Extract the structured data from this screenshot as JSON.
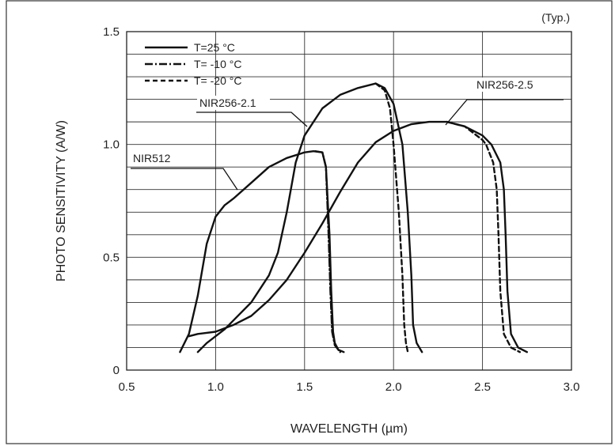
{
  "chart_data": {
    "type": "line",
    "title": "",
    "annotation": "(Typ.)",
    "xlabel": "WAVELENGTH (µm)",
    "ylabel": "PHOTO SENSITIVITY (A/W)",
    "xlim": [
      0.5,
      3.0
    ],
    "ylim": [
      0,
      1.5
    ],
    "xticks": [
      "0.5",
      "1.0",
      "1.5",
      "2.0",
      "2.5",
      "3.0"
    ],
    "yticks": [
      "0",
      "0.5",
      "1.0",
      "1.5"
    ],
    "x_grid": [
      1.0,
      1.5,
      2.0,
      2.5
    ],
    "y_grid": [
      0.1,
      0.2,
      0.3,
      0.4,
      0.5,
      0.6,
      0.7,
      0.8,
      0.9,
      1.0,
      1.1,
      1.2,
      1.3,
      1.4
    ],
    "grid": true,
    "legend": {
      "placement": "top-left",
      "entries": [
        {
          "label": "T=25 °C",
          "style": "solid"
        },
        {
          "label": "T= -10 °C",
          "style": "dashdot"
        },
        {
          "label": "T= -20 °C",
          "style": "dashed"
        }
      ]
    },
    "series": [
      {
        "name": "NIR512",
        "temperature": "T=25 °C",
        "style": "solid",
        "x": [
          0.8,
          0.85,
          0.9,
          0.95,
          1.0,
          1.05,
          1.1,
          1.2,
          1.3,
          1.4,
          1.5,
          1.55,
          1.6,
          1.62,
          1.64,
          1.65,
          1.66,
          1.67,
          1.69,
          1.72
        ],
        "y": [
          0.08,
          0.16,
          0.33,
          0.56,
          0.68,
          0.73,
          0.76,
          0.83,
          0.9,
          0.94,
          0.965,
          0.97,
          0.965,
          0.9,
          0.6,
          0.35,
          0.17,
          0.12,
          0.09,
          0.08
        ]
      },
      {
        "name": "NIR512",
        "temperature": "T= -10 °C",
        "style": "dashdot",
        "x": [
          1.56,
          1.6,
          1.62,
          1.635,
          1.645,
          1.655,
          1.67,
          1.7
        ],
        "y": [
          0.97,
          0.965,
          0.9,
          0.6,
          0.35,
          0.17,
          0.11,
          0.08
        ]
      },
      {
        "name": "NIR256-2.1",
        "temperature": "T=25 °C",
        "style": "solid",
        "x": [
          0.9,
          0.95,
          1.0,
          1.05,
          1.1,
          1.2,
          1.3,
          1.35,
          1.4,
          1.45,
          1.5,
          1.6,
          1.7,
          1.8,
          1.9,
          1.95,
          2.0,
          2.05,
          2.08,
          2.1,
          2.11,
          2.13,
          2.16
        ],
        "y": [
          0.08,
          0.12,
          0.15,
          0.18,
          0.22,
          0.3,
          0.42,
          0.52,
          0.7,
          0.92,
          1.04,
          1.16,
          1.22,
          1.25,
          1.27,
          1.25,
          1.18,
          1.0,
          0.7,
          0.42,
          0.2,
          0.12,
          0.08
        ]
      },
      {
        "name": "NIR256-2.1",
        "temperature": "T= -20 °C",
        "style": "dashed",
        "x": [
          1.9,
          1.95,
          1.98,
          2.0,
          2.03,
          2.05,
          2.06,
          2.07,
          2.08
        ],
        "y": [
          1.27,
          1.24,
          1.16,
          1.0,
          0.7,
          0.42,
          0.2,
          0.12,
          0.08
        ]
      },
      {
        "name": "NIR256-2.5",
        "temperature": "T=25 °C",
        "style": "solid",
        "x": [
          0.85,
          0.9,
          1.0,
          1.1,
          1.2,
          1.3,
          1.4,
          1.5,
          1.6,
          1.7,
          1.8,
          1.9,
          2.0,
          2.1,
          2.2,
          2.3,
          2.4,
          2.5,
          2.55,
          2.6,
          2.62,
          2.63,
          2.64,
          2.66,
          2.7,
          2.75
        ],
        "y": [
          0.15,
          0.16,
          0.17,
          0.2,
          0.24,
          0.31,
          0.4,
          0.52,
          0.65,
          0.79,
          0.92,
          1.01,
          1.06,
          1.09,
          1.1,
          1.1,
          1.08,
          1.04,
          1.0,
          0.92,
          0.8,
          0.6,
          0.35,
          0.16,
          0.1,
          0.08
        ]
      },
      {
        "name": "NIR256-2.5",
        "temperature": "T= -20 °C",
        "style": "dashed",
        "x": [
          2.3,
          2.4,
          2.5,
          2.52,
          2.56,
          2.58,
          2.59,
          2.6,
          2.62,
          2.66,
          2.71
        ],
        "y": [
          1.1,
          1.08,
          1.02,
          1.0,
          0.92,
          0.8,
          0.6,
          0.35,
          0.16,
          0.1,
          0.08
        ]
      }
    ],
    "labels": [
      {
        "text": "NIR512"
      },
      {
        "text": "NIR256-2.1"
      },
      {
        "text": "NIR256-2.5"
      }
    ]
  }
}
